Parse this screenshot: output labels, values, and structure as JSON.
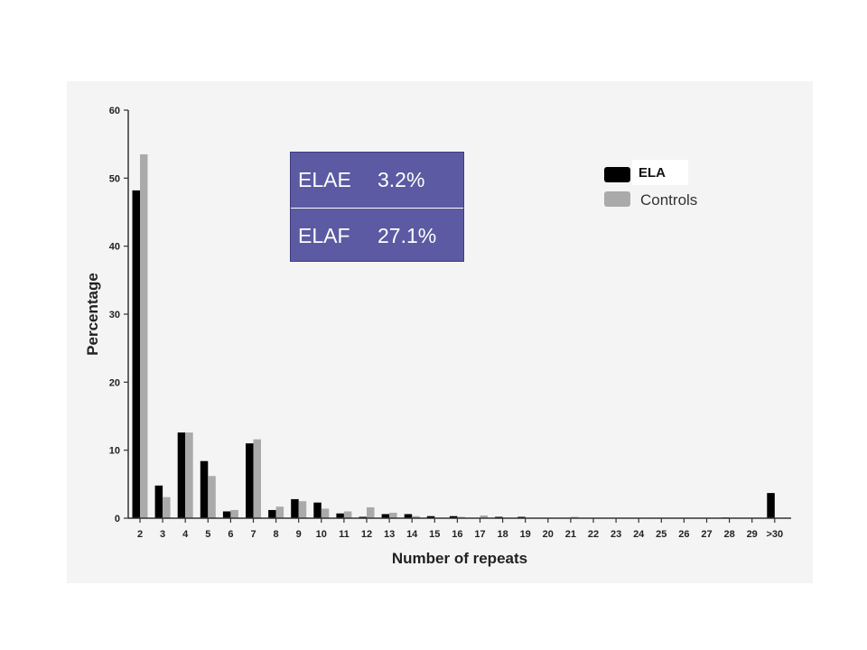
{
  "stats": {
    "row1": {
      "name": "ELAE",
      "value": "3.2%"
    },
    "row2": {
      "name": "ELAF",
      "value": "27.1%"
    }
  },
  "colors": {
    "ela": "#000000",
    "controls": "#aaaaaa",
    "stats_box": "#5b5aa2"
  },
  "chart_data": {
    "type": "bar",
    "xlabel": "Number of repeats",
    "ylabel": "Percentage",
    "ylim": [
      0,
      60
    ],
    "yticks": [
      "0",
      "10",
      "20",
      "30",
      "40",
      "50",
      "60"
    ],
    "categories": [
      "2",
      "3",
      "4",
      "5",
      "6",
      "7",
      "8",
      "9",
      "10",
      "11",
      "12",
      "13",
      "14",
      "15",
      "16",
      "17",
      "18",
      "19",
      "20",
      "21",
      "22",
      "23",
      "24",
      "25",
      "26",
      "27",
      "28",
      "29",
      ">30"
    ],
    "series": [
      {
        "name": "ELA",
        "color": "#000000",
        "values": [
          48.2,
          4.8,
          12.6,
          8.4,
          1.0,
          11.0,
          1.2,
          2.8,
          2.3,
          0.7,
          0.2,
          0.6,
          0.6,
          0.3,
          0.3,
          0,
          0.2,
          0.2,
          0,
          0,
          0,
          0,
          0,
          0,
          0,
          0,
          0.1,
          0,
          3.7
        ]
      },
      {
        "name": "Controls",
        "color": "#aaaaaa",
        "values": [
          53.5,
          3.1,
          12.6,
          6.2,
          1.2,
          11.6,
          1.7,
          2.5,
          1.4,
          1.0,
          1.6,
          0.8,
          0.3,
          0,
          0.2,
          0.4,
          0,
          0,
          0,
          0.2,
          0,
          0,
          0,
          0,
          0,
          0,
          0,
          0,
          0
        ]
      }
    ],
    "legend": {
      "placement": "top-right",
      "entries": [
        "ELA",
        "Controls"
      ]
    }
  }
}
